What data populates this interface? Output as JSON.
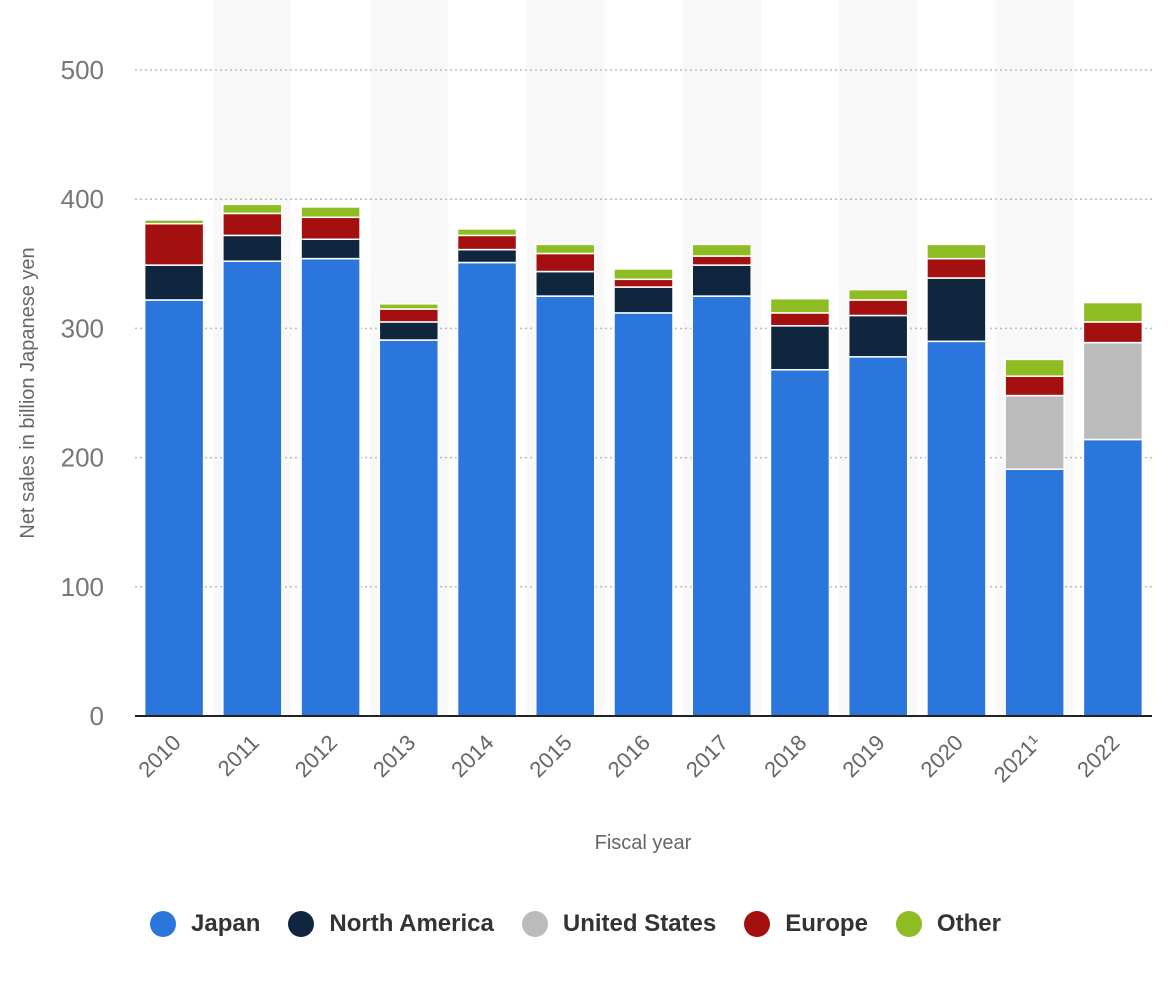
{
  "chart_data": {
    "type": "bar",
    "stacked": true,
    "xlabel": "Fiscal year",
    "ylabel": "Net sales in billion Japanese yen",
    "ylim": [
      0,
      500
    ],
    "yticks": [
      0,
      100,
      200,
      300,
      400,
      500
    ],
    "categories": [
      "2010",
      "2011",
      "2012",
      "2013",
      "2014",
      "2015",
      "2016",
      "2017",
      "2018",
      "2019",
      "2020",
      "2021¹",
      "2022"
    ],
    "series": [
      {
        "name": "Japan",
        "color": "#2a76dd",
        "values": [
          322,
          352,
          354,
          291,
          351,
          325,
          312,
          325,
          268,
          278,
          290,
          191,
          214
        ]
      },
      {
        "name": "North America",
        "color": "#10263e",
        "values": [
          27,
          20,
          15,
          14,
          10,
          19,
          20,
          24,
          34,
          32,
          49,
          0,
          0
        ]
      },
      {
        "name": "United States",
        "color": "#bbbbbb",
        "values": [
          0,
          0,
          0,
          0,
          0,
          0,
          0,
          0,
          0,
          0,
          0,
          57,
          75
        ]
      },
      {
        "name": "Europe",
        "color": "#a40f0f",
        "values": [
          32,
          17,
          17,
          10,
          11,
          14,
          6,
          7,
          10,
          12,
          15,
          15,
          16
        ]
      },
      {
        "name": "Other",
        "color": "#8dbd22",
        "values": [
          3,
          7,
          8,
          4,
          5,
          7,
          8,
          9,
          11,
          8,
          11,
          13,
          15
        ]
      }
    ]
  }
}
